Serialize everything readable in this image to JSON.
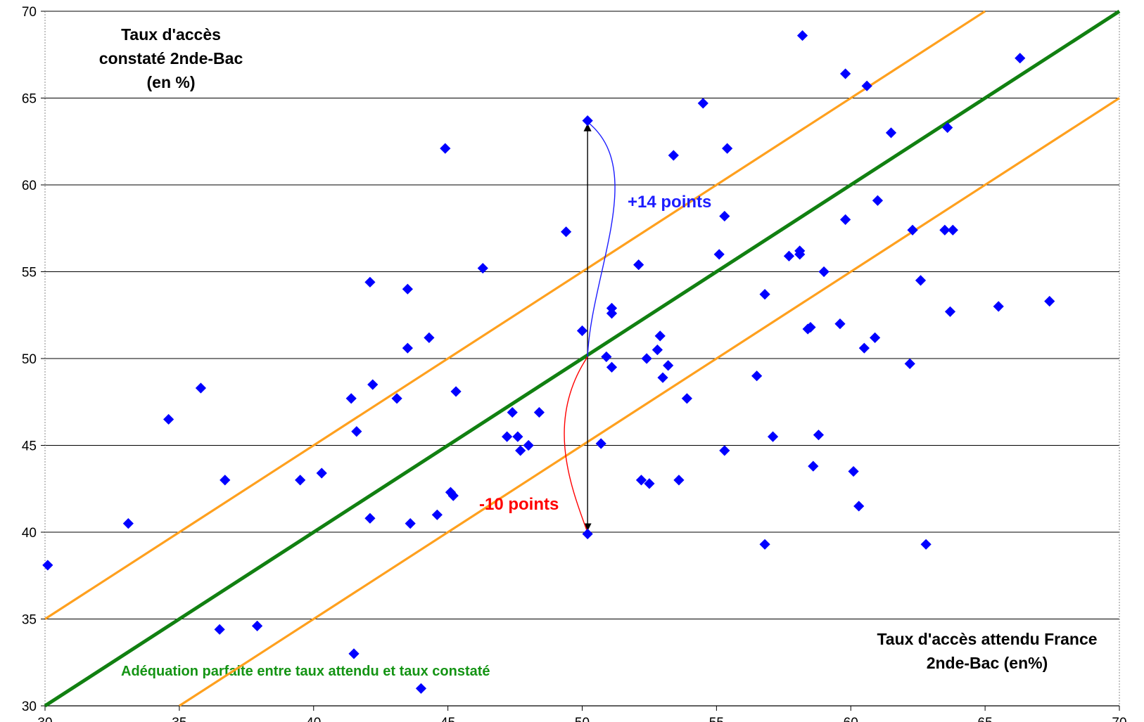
{
  "chart_data": {
    "type": "scatter",
    "xlim": [
      30,
      70
    ],
    "ylim": [
      30,
      70
    ],
    "xticks": [
      30,
      35,
      40,
      45,
      50,
      55,
      60,
      65,
      70
    ],
    "yticks": [
      30,
      35,
      40,
      45,
      50,
      55,
      60,
      65,
      70
    ],
    "grid": "horizontal",
    "ylabel_lines": [
      "Taux d'accès",
      "constaté 2nde-Bac",
      "(en %)"
    ],
    "xlabel_lines": [
      "Taux d'accès attendu France",
      "2nde-Bac (en%)"
    ],
    "colors": {
      "points": "#0000ff",
      "diagonal": "#118011",
      "bands": "#ffa01e",
      "grid": "#000000"
    },
    "reference_lines": [
      {
        "kind": "diagonal",
        "label": "Adéquation parfaite entre taux attendu et taux constaté",
        "from": [
          30,
          30
        ],
        "to": [
          70,
          70
        ]
      },
      {
        "kind": "band",
        "from": [
          30,
          35
        ],
        "to": [
          65,
          70
        ]
      },
      {
        "kind": "band",
        "from": [
          35,
          30
        ],
        "to": [
          70,
          65
        ]
      }
    ],
    "annotations": [
      {
        "text": "+14 points",
        "x": 50.2,
        "from_y": 50.1,
        "to_y": 63.7,
        "color": "#1c1cff"
      },
      {
        "text": "-10 points",
        "x": 50.2,
        "from_y": 50.1,
        "to_y": 39.9,
        "color": "#ff0000"
      }
    ],
    "series": [
      {
        "marker": "diamond",
        "points": [
          [
            30.1,
            38.1
          ],
          [
            33.1,
            40.5
          ],
          [
            34.6,
            46.5
          ],
          [
            35.8,
            48.3
          ],
          [
            36.5,
            34.4
          ],
          [
            36.7,
            43.0
          ],
          [
            37.9,
            34.6
          ],
          [
            39.5,
            43.0
          ],
          [
            40.3,
            43.4
          ],
          [
            41.4,
            47.7
          ],
          [
            41.5,
            33.0
          ],
          [
            41.6,
            45.8
          ],
          [
            42.1,
            54.4
          ],
          [
            42.1,
            40.8
          ],
          [
            42.2,
            48.5
          ],
          [
            43.1,
            47.7
          ],
          [
            43.5,
            54.0
          ],
          [
            43.5,
            50.6
          ],
          [
            43.6,
            40.5
          ],
          [
            44.0,
            31.0
          ],
          [
            44.3,
            51.2
          ],
          [
            44.6,
            41.0
          ],
          [
            44.9,
            62.1
          ],
          [
            45.1,
            42.3
          ],
          [
            45.2,
            42.1
          ],
          [
            45.3,
            48.1
          ],
          [
            46.3,
            55.2
          ],
          [
            47.2,
            45.5
          ],
          [
            47.4,
            46.9
          ],
          [
            47.6,
            45.5
          ],
          [
            47.7,
            44.7
          ],
          [
            48.0,
            45.0
          ],
          [
            48.4,
            46.9
          ],
          [
            49.4,
            57.3
          ],
          [
            50.0,
            51.6
          ],
          [
            50.2,
            63.7
          ],
          [
            50.2,
            39.9
          ],
          [
            50.7,
            45.1
          ],
          [
            50.9,
            50.1
          ],
          [
            51.1,
            49.5
          ],
          [
            51.1,
            52.9
          ],
          [
            51.1,
            52.6
          ],
          [
            52.1,
            55.4
          ],
          [
            52.2,
            43.0
          ],
          [
            52.4,
            50.0
          ],
          [
            52.5,
            42.8
          ],
          [
            52.8,
            50.5
          ],
          [
            52.9,
            51.3
          ],
          [
            53.0,
            48.9
          ],
          [
            53.2,
            49.6
          ],
          [
            53.4,
            61.7
          ],
          [
            53.6,
            43.0
          ],
          [
            53.9,
            47.7
          ],
          [
            54.5,
            64.7
          ],
          [
            55.1,
            56.0
          ],
          [
            55.3,
            58.2
          ],
          [
            55.3,
            44.7
          ],
          [
            55.4,
            62.1
          ],
          [
            56.5,
            49.0
          ],
          [
            56.8,
            53.7
          ],
          [
            56.8,
            39.3
          ],
          [
            57.1,
            45.5
          ],
          [
            57.7,
            55.9
          ],
          [
            58.1,
            56.0
          ],
          [
            58.1,
            56.2
          ],
          [
            58.2,
            68.6
          ],
          [
            58.4,
            51.7
          ],
          [
            58.5,
            51.8
          ],
          [
            58.6,
            43.8
          ],
          [
            58.8,
            45.6
          ],
          [
            59.0,
            55.0
          ],
          [
            59.6,
            52.0
          ],
          [
            59.8,
            66.4
          ],
          [
            59.8,
            58.0
          ],
          [
            60.1,
            43.5
          ],
          [
            60.3,
            41.5
          ],
          [
            60.5,
            50.6
          ],
          [
            60.6,
            65.7
          ],
          [
            60.9,
            51.2
          ],
          [
            61.0,
            59.1
          ],
          [
            61.5,
            63.0
          ],
          [
            62.2,
            49.7
          ],
          [
            62.3,
            57.4
          ],
          [
            62.6,
            54.5
          ],
          [
            62.8,
            39.3
          ],
          [
            63.5,
            57.4
          ],
          [
            63.6,
            63.3
          ],
          [
            63.7,
            52.7
          ],
          [
            63.8,
            57.4
          ],
          [
            65.5,
            53.0
          ],
          [
            66.3,
            67.3
          ],
          [
            67.4,
            53.3
          ]
        ]
      }
    ]
  }
}
